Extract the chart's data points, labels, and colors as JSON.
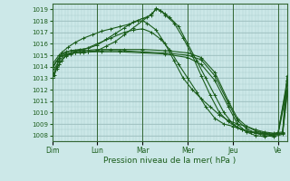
{
  "bg_color": "#cce8e8",
  "plot_bg_color": "#cce8e8",
  "grid_minor_color": "#aacccc",
  "grid_major_color": "#99bbbb",
  "line_color": "#1a5c1a",
  "spine_color": "#336633",
  "xlabel": "Pression niveau de la mer( hPa )",
  "yticks": [
    1008,
    1009,
    1010,
    1011,
    1012,
    1013,
    1014,
    1015,
    1016,
    1017,
    1018,
    1019
  ],
  "ylim": [
    1007.5,
    1019.5
  ],
  "xlim": [
    0,
    5.2
  ],
  "xtick_labels": [
    "Dim",
    "Lun",
    "Mar",
    "Mer",
    "Jeu",
    "Ve"
  ],
  "xtick_positions": [
    0,
    1,
    2,
    3,
    4,
    5
  ],
  "series": [
    [
      0.0,
      1013.0,
      0.05,
      1013.3,
      0.1,
      1013.8,
      0.15,
      1014.2,
      0.2,
      1014.5,
      0.3,
      1014.9,
      0.4,
      1015.1,
      0.5,
      1015.2,
      0.6,
      1015.2,
      0.7,
      1015.2,
      0.8,
      1015.3,
      1.0,
      1015.4,
      1.2,
      1015.8,
      1.4,
      1016.2,
      1.6,
      1016.8,
      1.8,
      1017.4,
      2.0,
      1018.0,
      2.1,
      1018.3,
      2.2,
      1018.6,
      2.3,
      1019.0,
      2.4,
      1018.9,
      2.5,
      1018.6,
      2.6,
      1018.3,
      2.8,
      1017.5,
      3.0,
      1016.0,
      3.2,
      1014.5,
      3.4,
      1013.0,
      3.6,
      1011.5,
      3.8,
      1010.0,
      4.0,
      1009.0,
      4.2,
      1008.5,
      4.4,
      1008.3,
      4.6,
      1008.2,
      4.8,
      1008.1,
      5.0,
      1008.2,
      5.2,
      1012.5
    ],
    [
      0.0,
      1014.0,
      0.1,
      1014.5,
      0.2,
      1015.0,
      0.4,
      1015.4,
      0.6,
      1015.5,
      0.8,
      1015.6,
      1.0,
      1015.9,
      1.2,
      1016.4,
      1.4,
      1016.9,
      1.6,
      1017.4,
      1.8,
      1017.9,
      2.0,
      1018.2,
      2.2,
      1018.5,
      2.3,
      1019.1,
      2.4,
      1018.9,
      2.5,
      1018.5,
      2.7,
      1017.8,
      2.9,
      1016.5,
      3.1,
      1015.0,
      3.3,
      1013.2,
      3.5,
      1011.5,
      3.7,
      1010.0,
      3.9,
      1009.2,
      4.1,
      1008.7,
      4.3,
      1008.4,
      4.5,
      1008.2,
      4.7,
      1008.1,
      4.9,
      1008.0,
      5.1,
      1008.2,
      5.2,
      1012.8
    ],
    [
      0.0,
      1013.5,
      0.15,
      1014.5,
      0.3,
      1015.1,
      0.5,
      1015.3,
      0.7,
      1015.4,
      1.0,
      1015.5,
      1.3,
      1015.5,
      1.6,
      1015.5,
      2.0,
      1015.5,
      2.5,
      1015.4,
      3.0,
      1015.2,
      3.3,
      1014.8,
      3.6,
      1013.5,
      3.9,
      1011.0,
      4.1,
      1009.5,
      4.3,
      1008.8,
      4.5,
      1008.4,
      4.7,
      1008.2,
      4.9,
      1008.1,
      5.1,
      1008.2,
      5.2,
      1011.8
    ],
    [
      0.0,
      1013.2,
      0.15,
      1014.2,
      0.3,
      1015.0,
      0.5,
      1015.2,
      0.8,
      1015.3,
      1.1,
      1015.4,
      1.5,
      1015.4,
      2.0,
      1015.3,
      2.5,
      1015.2,
      3.0,
      1015.0,
      3.3,
      1014.6,
      3.6,
      1013.2,
      3.9,
      1010.8,
      4.1,
      1009.3,
      4.3,
      1008.6,
      4.5,
      1008.2,
      4.7,
      1008.0,
      4.9,
      1007.9,
      5.1,
      1008.1,
      5.2,
      1011.5
    ],
    [
      0.0,
      1013.8,
      0.15,
      1014.8,
      0.3,
      1015.1,
      0.5,
      1015.2,
      0.8,
      1015.3,
      1.1,
      1015.3,
      1.5,
      1015.3,
      2.0,
      1015.2,
      2.5,
      1015.1,
      3.0,
      1014.8,
      3.3,
      1014.2,
      3.6,
      1012.8,
      3.9,
      1010.5,
      4.1,
      1009.0,
      4.3,
      1008.3,
      4.5,
      1008.0,
      4.7,
      1007.9,
      5.0,
      1008.1,
      5.2,
      1012.0
    ],
    [
      0.0,
      1014.2,
      0.15,
      1015.0,
      0.3,
      1015.3,
      0.5,
      1015.4,
      0.7,
      1015.5,
      1.0,
      1016.0,
      1.3,
      1016.5,
      1.6,
      1017.0,
      1.8,
      1017.2,
      2.0,
      1017.3,
      2.2,
      1017.0,
      2.4,
      1016.4,
      2.6,
      1015.5,
      2.8,
      1014.2,
      3.0,
      1013.0,
      3.2,
      1011.8,
      3.4,
      1010.5,
      3.6,
      1009.5,
      3.8,
      1009.0,
      4.0,
      1008.8,
      4.2,
      1008.5,
      4.4,
      1008.3,
      4.6,
      1008.2,
      4.8,
      1008.1,
      5.0,
      1008.2,
      5.2,
      1012.8
    ],
    [
      0.0,
      1013.0,
      0.1,
      1014.0,
      0.2,
      1015.2,
      0.35,
      1015.7,
      0.5,
      1016.1,
      0.7,
      1016.5,
      0.9,
      1016.8,
      1.1,
      1017.1,
      1.3,
      1017.3,
      1.5,
      1017.5,
      1.7,
      1017.7,
      1.9,
      1018.0,
      2.0,
      1018.0,
      2.1,
      1017.8,
      2.3,
      1017.2,
      2.5,
      1016.0,
      2.7,
      1014.5,
      2.9,
      1013.0,
      3.1,
      1012.0,
      3.3,
      1011.2,
      3.5,
      1010.5,
      3.7,
      1009.8,
      3.9,
      1009.3,
      4.1,
      1009.0,
      4.3,
      1008.8,
      4.5,
      1008.5,
      4.7,
      1008.3,
      4.9,
      1008.2,
      5.1,
      1008.3,
      5.2,
      1013.2
    ]
  ]
}
